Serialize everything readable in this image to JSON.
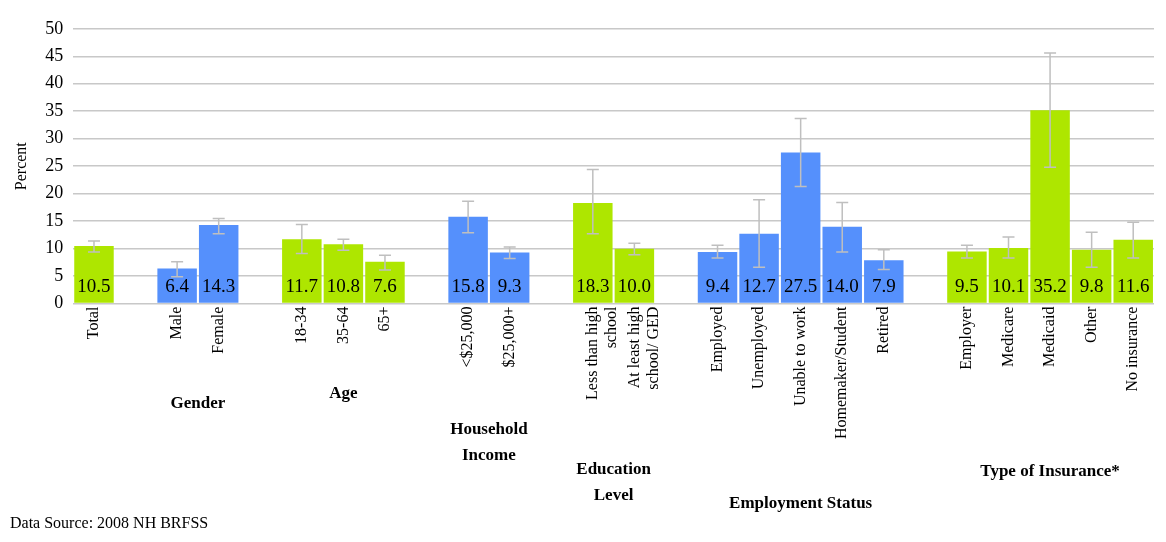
{
  "chart_data": {
    "type": "bar",
    "ylabel": "Percent",
    "categories": [
      "Total",
      null,
      "Male",
      "Female",
      null,
      "18-34",
      "35-64",
      "65+",
      null,
      "<$25,000",
      "$25,000+",
      null,
      "Less than high school",
      "At least high school/ GED",
      null,
      "Employed",
      "Unemployed",
      "Unable to work",
      "Homemaker/Student",
      "Retired",
      null,
      "Employer",
      "Medicare",
      "Medicaid",
      "Other",
      "No insurance"
    ],
    "values": [
      10.5,
      null,
      6.4,
      14.3,
      null,
      11.7,
      10.8,
      7.6,
      null,
      15.8,
      9.3,
      null,
      18.3,
      10.0,
      null,
      9.4,
      12.7,
      27.5,
      14.0,
      7.9,
      null,
      9.5,
      10.1,
      35.2,
      9.8,
      11.6
    ],
    "colors": [
      "#aee600",
      "#aee600",
      "#5590fc",
      "#5590fc",
      "#aee600",
      "#aee600",
      "#aee600",
      "#aee600",
      "#5590fc",
      "#5590fc",
      "#5590fc",
      "#aee600",
      "#aee600",
      "#aee600",
      "#5590fc",
      "#5590fc",
      "#5590fc",
      "#5590fc",
      "#5590fc",
      "#5590fc",
      "#aee600",
      "#aee600",
      "#aee600",
      "#aee600",
      "#aee600",
      "#aee600"
    ],
    "errors": [
      [
        9.4,
        11.4
      ],
      null,
      [
        4.9,
        7.6
      ],
      [
        12.7,
        15.5
      ],
      null,
      [
        9.1,
        14.4
      ],
      [
        9.7,
        11.7
      ],
      [
        6.1,
        8.8
      ],
      null,
      [
        12.9,
        18.6
      ],
      [
        8.2,
        10.3
      ],
      null,
      [
        12.7,
        24.4
      ],
      [
        8.9,
        11.0
      ],
      null,
      [
        8.3,
        10.6
      ],
      [
        6.6,
        18.9
      ],
      [
        21.3,
        33.7
      ],
      [
        9.4,
        18.4
      ],
      [
        6.2,
        9.8
      ],
      null,
      [
        8.3,
        10.6
      ],
      [
        8.3,
        12.1
      ],
      [
        24.8,
        45.6
      ],
      [
        6.6,
        13.0
      ],
      [
        8.3,
        14.8
      ]
    ],
    "ylim": [
      0,
      50
    ],
    "yticks": [
      0,
      5,
      10,
      15,
      20,
      25,
      30,
      35,
      40,
      45,
      50
    ],
    "grid": "y",
    "legend": false,
    "value_labels": [
      "10.5",
      null,
      "6.4",
      "14.3",
      null,
      "11.7",
      "10.8",
      "7.6",
      null,
      "15.8",
      "9.3",
      null,
      "18.3",
      "10.0",
      null,
      "9.4",
      "12.7",
      "27.5",
      "14.0",
      "7.9",
      null,
      "9.5",
      "10.1",
      "35.2",
      "9.8",
      "11.6"
    ],
    "annotations": [
      "Gender",
      "Age",
      "Household Income",
      "Education Level",
      "Employment Status",
      "Type of Insurance*",
      "Data Source: 2008 NH BRFSS"
    ]
  }
}
